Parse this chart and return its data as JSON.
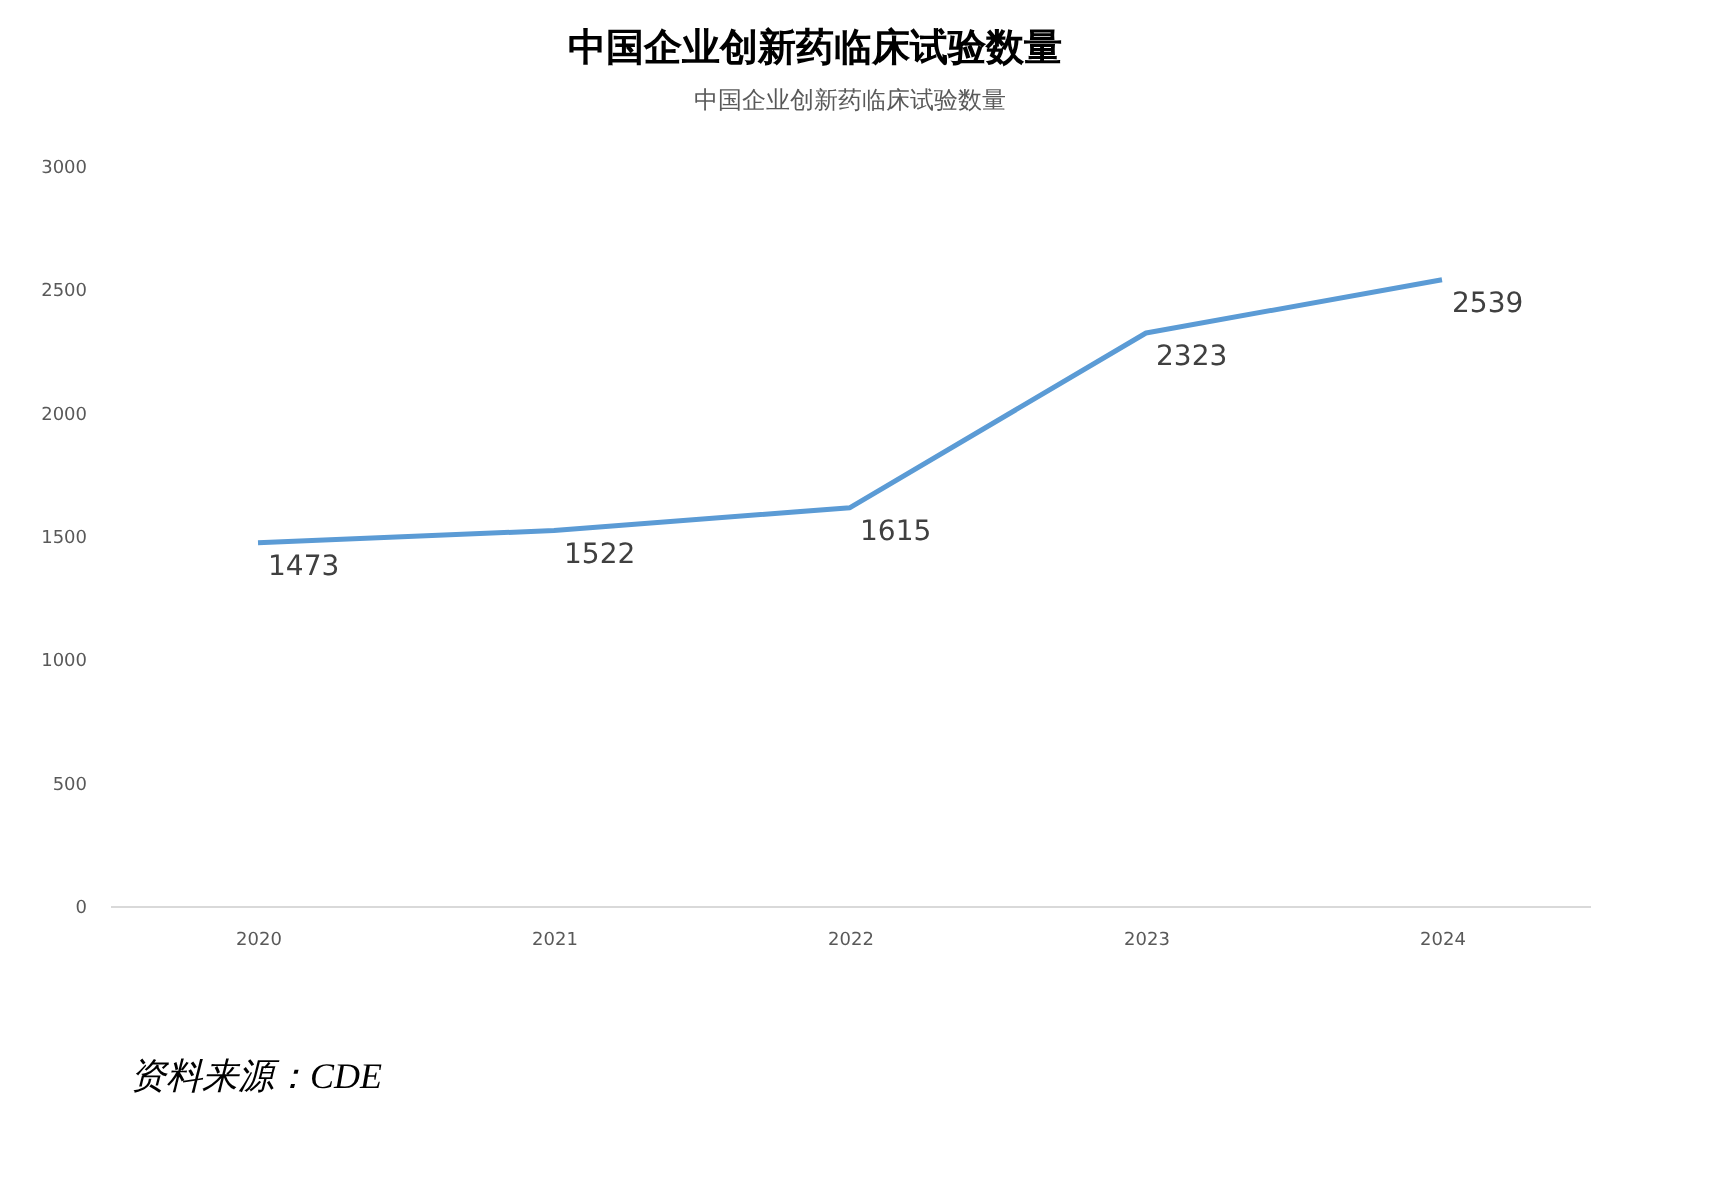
{
  "chart_data": {
    "type": "line",
    "title": "中国企业创新药临床试验数量",
    "subtitle": "中国企业创新药临床试验数量",
    "categories": [
      "2020",
      "2021",
      "2022",
      "2023",
      "2024"
    ],
    "series": [
      {
        "color": "#5b9bd5",
        "values": [
          1473,
          1522,
          1615,
          2323,
          2539
        ]
      }
    ],
    "ylim": [
      0,
      3000
    ],
    "yticks": [
      0,
      500,
      1000,
      1500,
      2000,
      2500,
      3000
    ],
    "grid": false,
    "legend": false,
    "marker": "none",
    "line_style": "solid",
    "data_labels": true,
    "annotations": [
      "资料来源：CDE"
    ]
  }
}
